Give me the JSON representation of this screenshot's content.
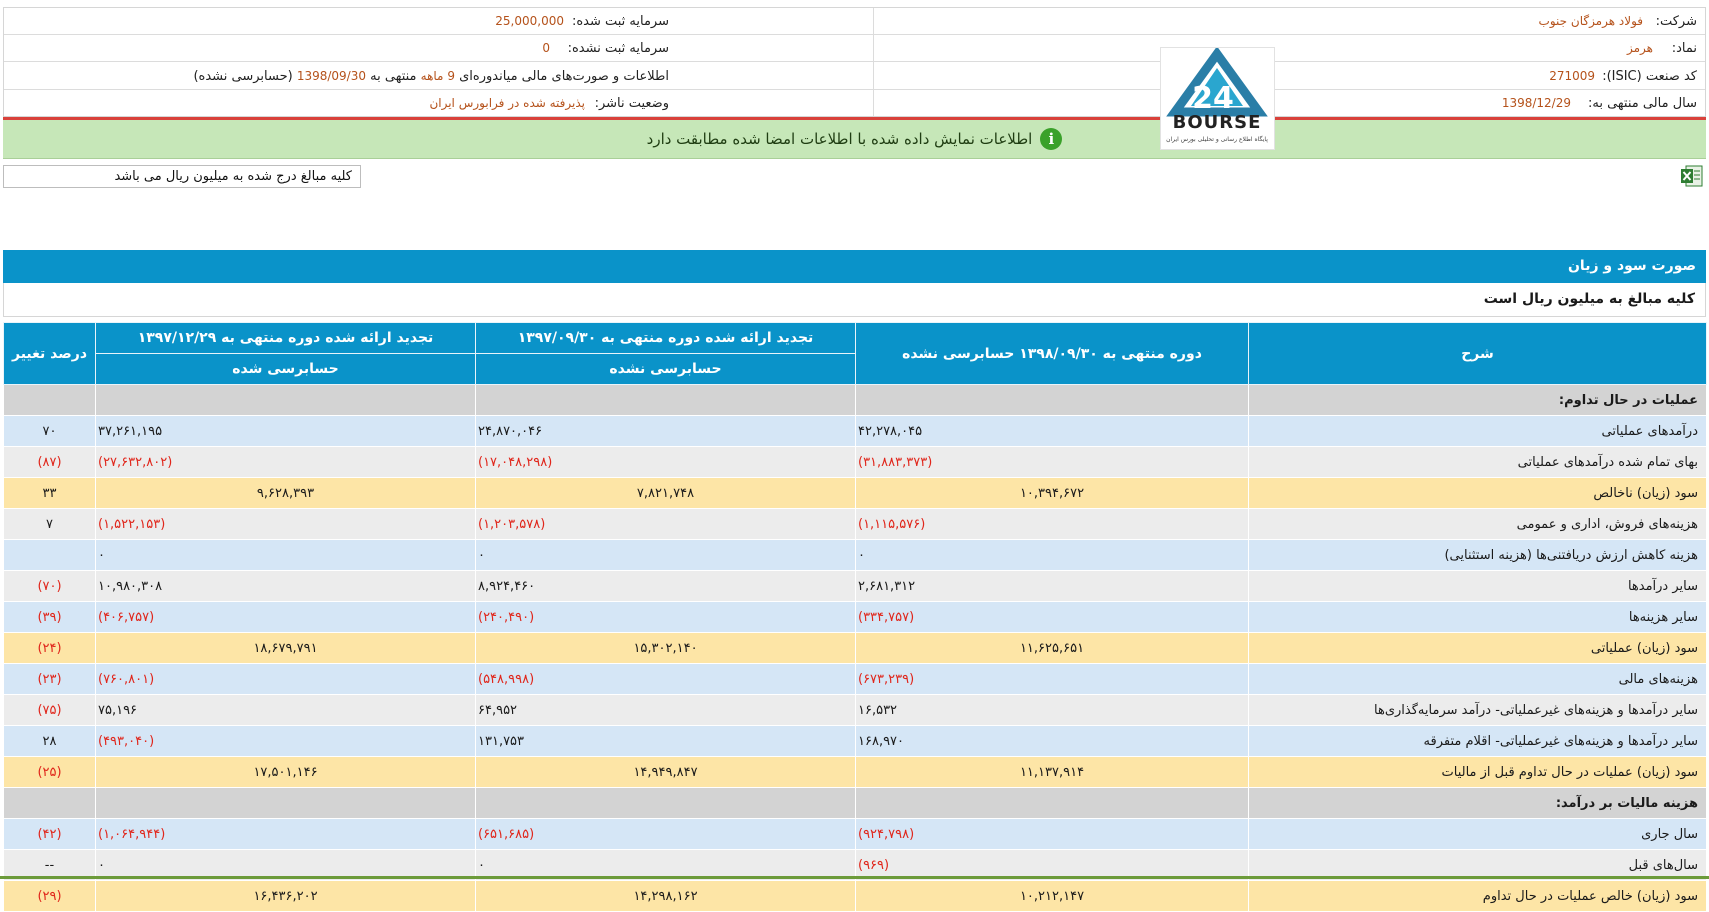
{
  "header": {
    "company_label": "شرکت:",
    "company_value": "فولاد هرمزگان جنوب",
    "symbol_label": "نماد:",
    "symbol_value": "هرمز",
    "isic_label": "کد صنعت (ISIC):",
    "isic_value": "271009",
    "fiscal_label": "سال مالی منتهی به:",
    "fiscal_value": "1398/12/29",
    "reg_capital_label": "سرمایه ثبت شده:",
    "reg_capital_value": "25,000,000",
    "unreg_capital_label": "سرمایه ثبت نشده:",
    "unreg_capital_value": "0",
    "report_text_a": "اطلاعات و صورت‌های مالی میاندوره‌ای",
    "report_months": "9 ماهه",
    "report_text_b": "منتهی به",
    "report_date": "1398/09/30",
    "report_audit": "(حسابرسی نشده)",
    "status_label": "وضعیت ناشر:",
    "status_value": "پذیرفته شده در فرابورس ایران"
  },
  "notice": {
    "text": "اطلاعات نمایش داده شده با اطلاعات امضا شده مطابقت دارد",
    "icon": "info-icon"
  },
  "logo": {
    "brand": "BOURSE",
    "number": "24",
    "tagline": "پایگاه اطلاع رسانی و تحلیلی بورس ایران"
  },
  "unit_note": "کلیه مبالغ درج شده به میلیون ریال می باشد",
  "statement": {
    "title": "صورت سود و زیان",
    "subtitle": "کلیه مبالغ به میلیون ریال است",
    "col_desc": "شرح",
    "col_p1": "دوره منتهی به ۱۳۹۸/۰۹/۳۰ حسابرسی نشده",
    "col_p2": "تجدید ارائه شده دوره منتهی به ۱۳۹۷/۰۹/۳۰",
    "col_p2_sub": "حسابرسی نشده",
    "col_p3": "تجدید ارائه شده دوره منتهی به ۱۳۹۷/۱۲/۲۹",
    "col_p3_sub": "حسابرسی شده",
    "col_pct": "درصد تغییر",
    "rows": [
      {
        "type": "grp",
        "desc": "عملیات در حال تداوم:",
        "p1": "",
        "p2": "",
        "p3": "",
        "pct": ""
      },
      {
        "type": "blue",
        "desc": "درآمدهای عملیاتی",
        "p1": "۴۲,۲۷۸,۰۴۵",
        "p2": "۲۴,۸۷۰,۰۴۶",
        "p3": "۳۷,۲۶۱,۱۹۵",
        "pct": "۷۰",
        "pos": "right"
      },
      {
        "type": "grey",
        "desc": "بهای تمام شده درآمدهای عملیاتی",
        "p1": "(۳۱,۸۸۳,۳۷۳)",
        "p2": "(۱۷,۰۴۸,۲۹۸)",
        "p3": "(۲۷,۶۳۲,۸۰۲)",
        "pct": "(۸۷)",
        "pos": "right"
      },
      {
        "type": "yel",
        "desc": "سود (زیان) ناخالص",
        "p1": "۱۰,۳۹۴,۶۷۲",
        "p2": "۷,۸۲۱,۷۴۸",
        "p3": "۹,۶۲۸,۳۹۳",
        "pct": "۳۳",
        "pos": "center"
      },
      {
        "type": "grey",
        "desc": "هزینه‌های فروش، اداری و عمومی",
        "p1": "(۱,۱۱۵,۵۷۶)",
        "p2": "(۱,۲۰۳,۵۷۸)",
        "p3": "(۱,۵۲۲,۱۵۳)",
        "pct": "۷",
        "pos": "right"
      },
      {
        "type": "blue",
        "desc": "هزینه کاهش ارزش دریافتنی‌ها (هزینه استثنایی)",
        "p1": "۰",
        "p2": "۰",
        "p3": "۰",
        "pct": "",
        "pos": "right"
      },
      {
        "type": "grey",
        "desc": "سایر درآمدها",
        "p1": "۲,۶۸۱,۳۱۲",
        "p2": "۸,۹۲۴,۴۶۰",
        "p3": "۱۰,۹۸۰,۳۰۸",
        "pct": "(۷۰)",
        "pos": "right"
      },
      {
        "type": "blue",
        "desc": "سایر هزینه‌ها",
        "p1": "(۳۳۴,۷۵۷)",
        "p2": "(۲۴۰,۴۹۰)",
        "p3": "(۴۰۶,۷۵۷)",
        "pct": "(۳۹)",
        "pos": "right"
      },
      {
        "type": "yel",
        "desc": "سود (زیان) عملیاتی",
        "p1": "۱۱,۶۲۵,۶۵۱",
        "p2": "۱۵,۳۰۲,۱۴۰",
        "p3": "۱۸,۶۷۹,۷۹۱",
        "pct": "(۲۴)",
        "pos": "center"
      },
      {
        "type": "blue",
        "desc": "هزینه‌های مالی",
        "p1": "(۶۷۳,۲۳۹)",
        "p2": "(۵۴۸,۹۹۸)",
        "p3": "(۷۶۰,۸۰۱)",
        "pct": "(۲۳)",
        "pos": "right"
      },
      {
        "type": "grey",
        "desc": "سایر درآمدها و هزینه‌های غیرعملیاتی- درآمد سرمایه‌گذاری‌ها",
        "p1": "۱۶,۵۳۲",
        "p2": "۶۴,۹۵۲",
        "p3": "۷۵,۱۹۶",
        "pct": "(۷۵)",
        "pos": "right"
      },
      {
        "type": "blue",
        "desc": "سایر درآمدها و هزینه‌های غیرعملیاتی- اقلام متفرقه",
        "p1": "۱۶۸,۹۷۰",
        "p2": "۱۳۱,۷۵۳",
        "p3": "(۴۹۳,۰۴۰)",
        "pct": "۲۸",
        "pos": "right"
      },
      {
        "type": "yel",
        "desc": "سود (زیان) عملیات در حال تداوم قبل از مالیات",
        "p1": "۱۱,۱۳۷,۹۱۴",
        "p2": "۱۴,۹۴۹,۸۴۷",
        "p3": "۱۷,۵۰۱,۱۴۶",
        "pct": "(۲۵)",
        "pos": "center"
      },
      {
        "type": "grp",
        "desc": "هزینه مالیات بر درآمد:",
        "p1": "",
        "p2": "",
        "p3": "",
        "pct": ""
      },
      {
        "type": "blue",
        "desc": "سال جاری",
        "p1": "(۹۲۴,۷۹۸)",
        "p2": "(۶۵۱,۶۸۵)",
        "p3": "(۱,۰۶۴,۹۴۴)",
        "pct": "(۴۲)",
        "pos": "right"
      },
      {
        "type": "grey",
        "desc": "سال‌های قبل",
        "p1": "(۹۶۹)",
        "p2": "۰",
        "p3": "۰",
        "pct": "--",
        "pos": "right"
      },
      {
        "type": "yel",
        "desc": "سود (زیان) خالص عملیات در حال تداوم",
        "p1": "۱۰,۲۱۲,۱۴۷",
        "p2": "۱۴,۲۹۸,۱۶۲",
        "p3": "۱۶,۴۳۶,۲۰۲",
        "pct": "(۲۹)",
        "pos": "center"
      }
    ]
  }
}
